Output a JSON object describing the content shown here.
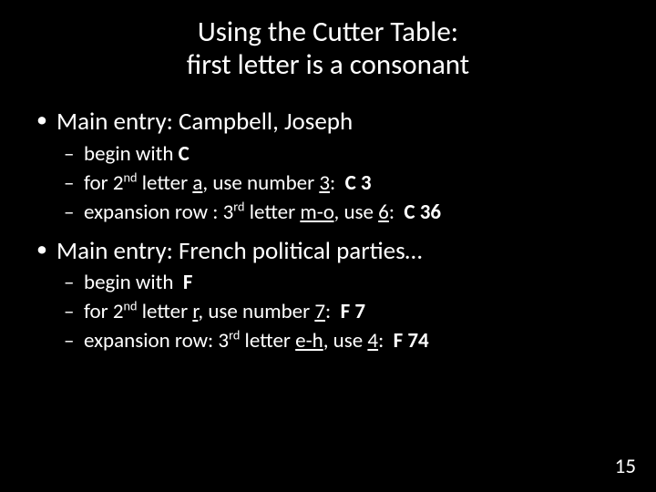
{
  "title": {
    "line1": "Using the Cutter Table:",
    "line2": "first letter is a consonant"
  },
  "bullets": [
    {
      "text_html": "Main entry: Campbell, Joseph",
      "sub": [
        {
          "text_html": "begin with <span class=\"b\">C</span>"
        },
        {
          "text_html": "for 2<sup>nd</sup> letter <span class=\"u\">a</span>, use number <span class=\"u\">3</span>:&nbsp; <span class=\"b\">C 3</span>"
        },
        {
          "text_html": "expansion row : 3<sup>rd</sup> letter <span class=\"u\">m-o</span>, use <span class=\"u\">6</span>:&nbsp;&nbsp;<span class=\"b\">C 36</span>"
        }
      ]
    },
    {
      "text_html": "Main entry: French political parties…",
      "sub": [
        {
          "text_html": "begin with&nbsp; <span class=\"b\">F</span>"
        },
        {
          "text_html": "for 2<sup>nd</sup> letter <span class=\"u\">r</span>, use number <span class=\"u\">7</span>:&nbsp;&nbsp;<span class=\"b\">F 7</span>"
        },
        {
          "text_html": "expansion row: 3<sup>rd</sup> letter <span class=\"u\">e-h</span>, use <span class=\"u\">4</span>:&nbsp;&nbsp;<span class=\"b\">F 74</span>"
        }
      ]
    }
  ],
  "page_number": "15",
  "colors": {
    "background": "#000000",
    "text": "#ffffff"
  }
}
